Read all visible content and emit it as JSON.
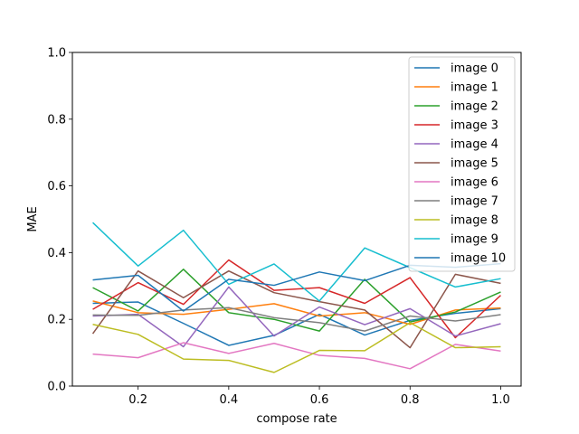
{
  "chart_data": {
    "type": "line",
    "title": "",
    "xlabel": "compose rate",
    "ylabel": "MAE",
    "xlim": [
      0.055,
      1.045
    ],
    "ylim": [
      0.0,
      1.0
    ],
    "xticks": [
      0.2,
      0.4,
      0.6,
      0.8,
      1.0
    ],
    "xtick_labels": [
      "0.2",
      "0.4",
      "0.6",
      "0.8",
      "1.0"
    ],
    "yticks": [
      0.0,
      0.2,
      0.4,
      0.6,
      0.8,
      1.0
    ],
    "ytick_labels": [
      "0.0",
      "0.2",
      "0.4",
      "0.6",
      "0.8",
      "1.0"
    ],
    "grid": false,
    "legend_position": "upper right",
    "x": [
      0.1,
      0.2,
      0.3,
      0.4,
      0.5,
      0.6,
      0.7,
      0.8,
      0.9,
      1.0
    ],
    "series": [
      {
        "name": "image 0",
        "color": "#1f77b4",
        "values": [
          0.248,
          0.252,
          0.188,
          0.122,
          0.152,
          0.215,
          0.153,
          0.197,
          0.218,
          0.232
        ]
      },
      {
        "name": "image 1",
        "color": "#ff7f0e",
        "values": [
          0.255,
          0.22,
          0.215,
          0.23,
          0.247,
          0.21,
          0.22,
          0.185,
          0.228,
          0.234
        ]
      },
      {
        "name": "image 2",
        "color": "#2ca02c",
        "values": [
          0.295,
          0.225,
          0.35,
          0.22,
          0.2,
          0.165,
          0.32,
          0.192,
          0.222,
          0.282
        ]
      },
      {
        "name": "image 3",
        "color": "#d62728",
        "values": [
          0.23,
          0.31,
          0.245,
          0.378,
          0.287,
          0.295,
          0.248,
          0.325,
          0.145,
          0.272
        ]
      },
      {
        "name": "image 4",
        "color": "#9467bd",
        "values": [
          0.21,
          0.215,
          0.118,
          0.297,
          0.15,
          0.237,
          0.184,
          0.232,
          0.15,
          0.187
        ]
      },
      {
        "name": "image 5",
        "color": "#8c564b",
        "values": [
          0.157,
          0.345,
          0.265,
          0.345,
          0.28,
          0.253,
          0.228,
          0.115,
          0.335,
          0.308
        ]
      },
      {
        "name": "image 6",
        "color": "#e377c2",
        "values": [
          0.096,
          0.085,
          0.13,
          0.098,
          0.128,
          0.092,
          0.083,
          0.052,
          0.125,
          0.105
        ]
      },
      {
        "name": "image 7",
        "color": "#7f7f7f",
        "values": [
          0.213,
          0.212,
          0.228,
          0.235,
          0.205,
          0.19,
          0.165,
          0.21,
          0.195,
          0.214
        ]
      },
      {
        "name": "image 8",
        "color": "#bcbd22",
        "values": [
          0.185,
          0.155,
          0.081,
          0.077,
          0.041,
          0.107,
          0.106,
          0.19,
          0.115,
          0.118
        ]
      },
      {
        "name": "image 9",
        "color": "#17becf",
        "values": [
          0.49,
          0.36,
          0.467,
          0.305,
          0.366,
          0.255,
          0.414,
          0.355,
          0.297,
          0.322
        ]
      },
      {
        "name": "image 10",
        "color": "#1f77b4",
        "values": [
          0.318,
          0.332,
          0.225,
          0.32,
          0.302,
          0.342,
          0.316,
          0.362,
          0.356,
          0.367
        ]
      }
    ]
  }
}
